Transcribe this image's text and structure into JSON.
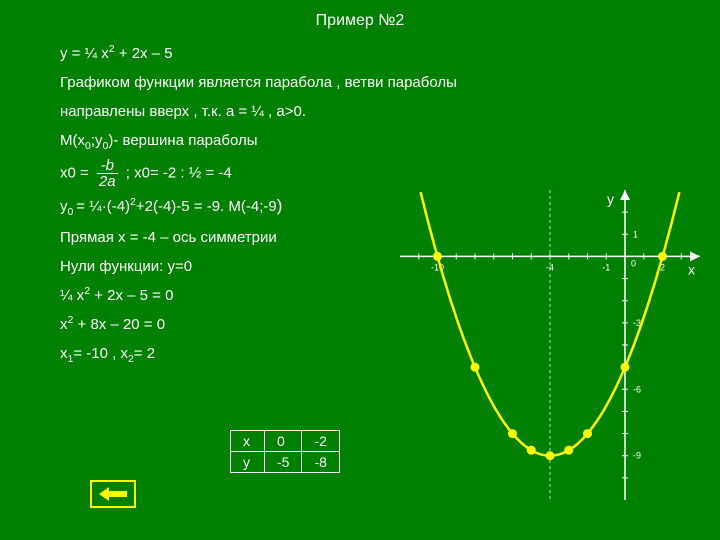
{
  "title": "Пример №2",
  "lines": {
    "eq": "у = ¼ х2 + 2х – 5",
    "desc1": "Графиком функции является парабола , ветви параболы",
    "desc2": "направлены вверх , т.к. а = ¼ , а>0.",
    "vertex_label": "М(х0;у0)- вершина параболы",
    "x0_prefix": "х0 = ",
    "frac_num": "-b",
    "frac_den": "2a",
    "x0_suffix": " ;     х0= -2 : ½ = -4",
    "y0": "у0 = ¼·(-4)2+2(-4)-5 = -9.   М(-4;-9)",
    "axis": "Прямая х = -4 – ось симметрии",
    "zeros": "Нули функции: у=0",
    "eq2": "¼ х2 + 2х – 5 = 0",
    "eq3": "х2 + 8х – 20 = 0",
    "roots": "х1= -10 , х2= 2"
  },
  "table": {
    "headers": [
      "х",
      "0",
      "-2"
    ],
    "row2": [
      "у",
      "-5",
      "-8"
    ]
  },
  "chart": {
    "xlabel": "x",
    "ylabel": "у",
    "parabola_color": "#ffff00",
    "point_color": "#ffff00",
    "axis_color": "#ffffff",
    "bg": "#008000",
    "xticks": [
      -10,
      -4,
      -1,
      2
    ],
    "yticks": [
      1,
      -3,
      -6,
      -9
    ],
    "xlim": [
      -12,
      4
    ],
    "ylim": [
      -11,
      3
    ],
    "vertex": [
      -4,
      -9
    ],
    "axis_of_symmetry": -4,
    "points": [
      [
        -10,
        0
      ],
      [
        2,
        0
      ],
      [
        0,
        -5
      ],
      [
        -2,
        -8
      ],
      [
        -4,
        -9
      ],
      [
        -3,
        -8.75
      ],
      [
        -5,
        -8.75
      ],
      [
        -6,
        -8
      ],
      [
        -8,
        -5
      ]
    ],
    "parabola_a": 0.25,
    "parabola_b": 2,
    "parabola_c": -5
  }
}
